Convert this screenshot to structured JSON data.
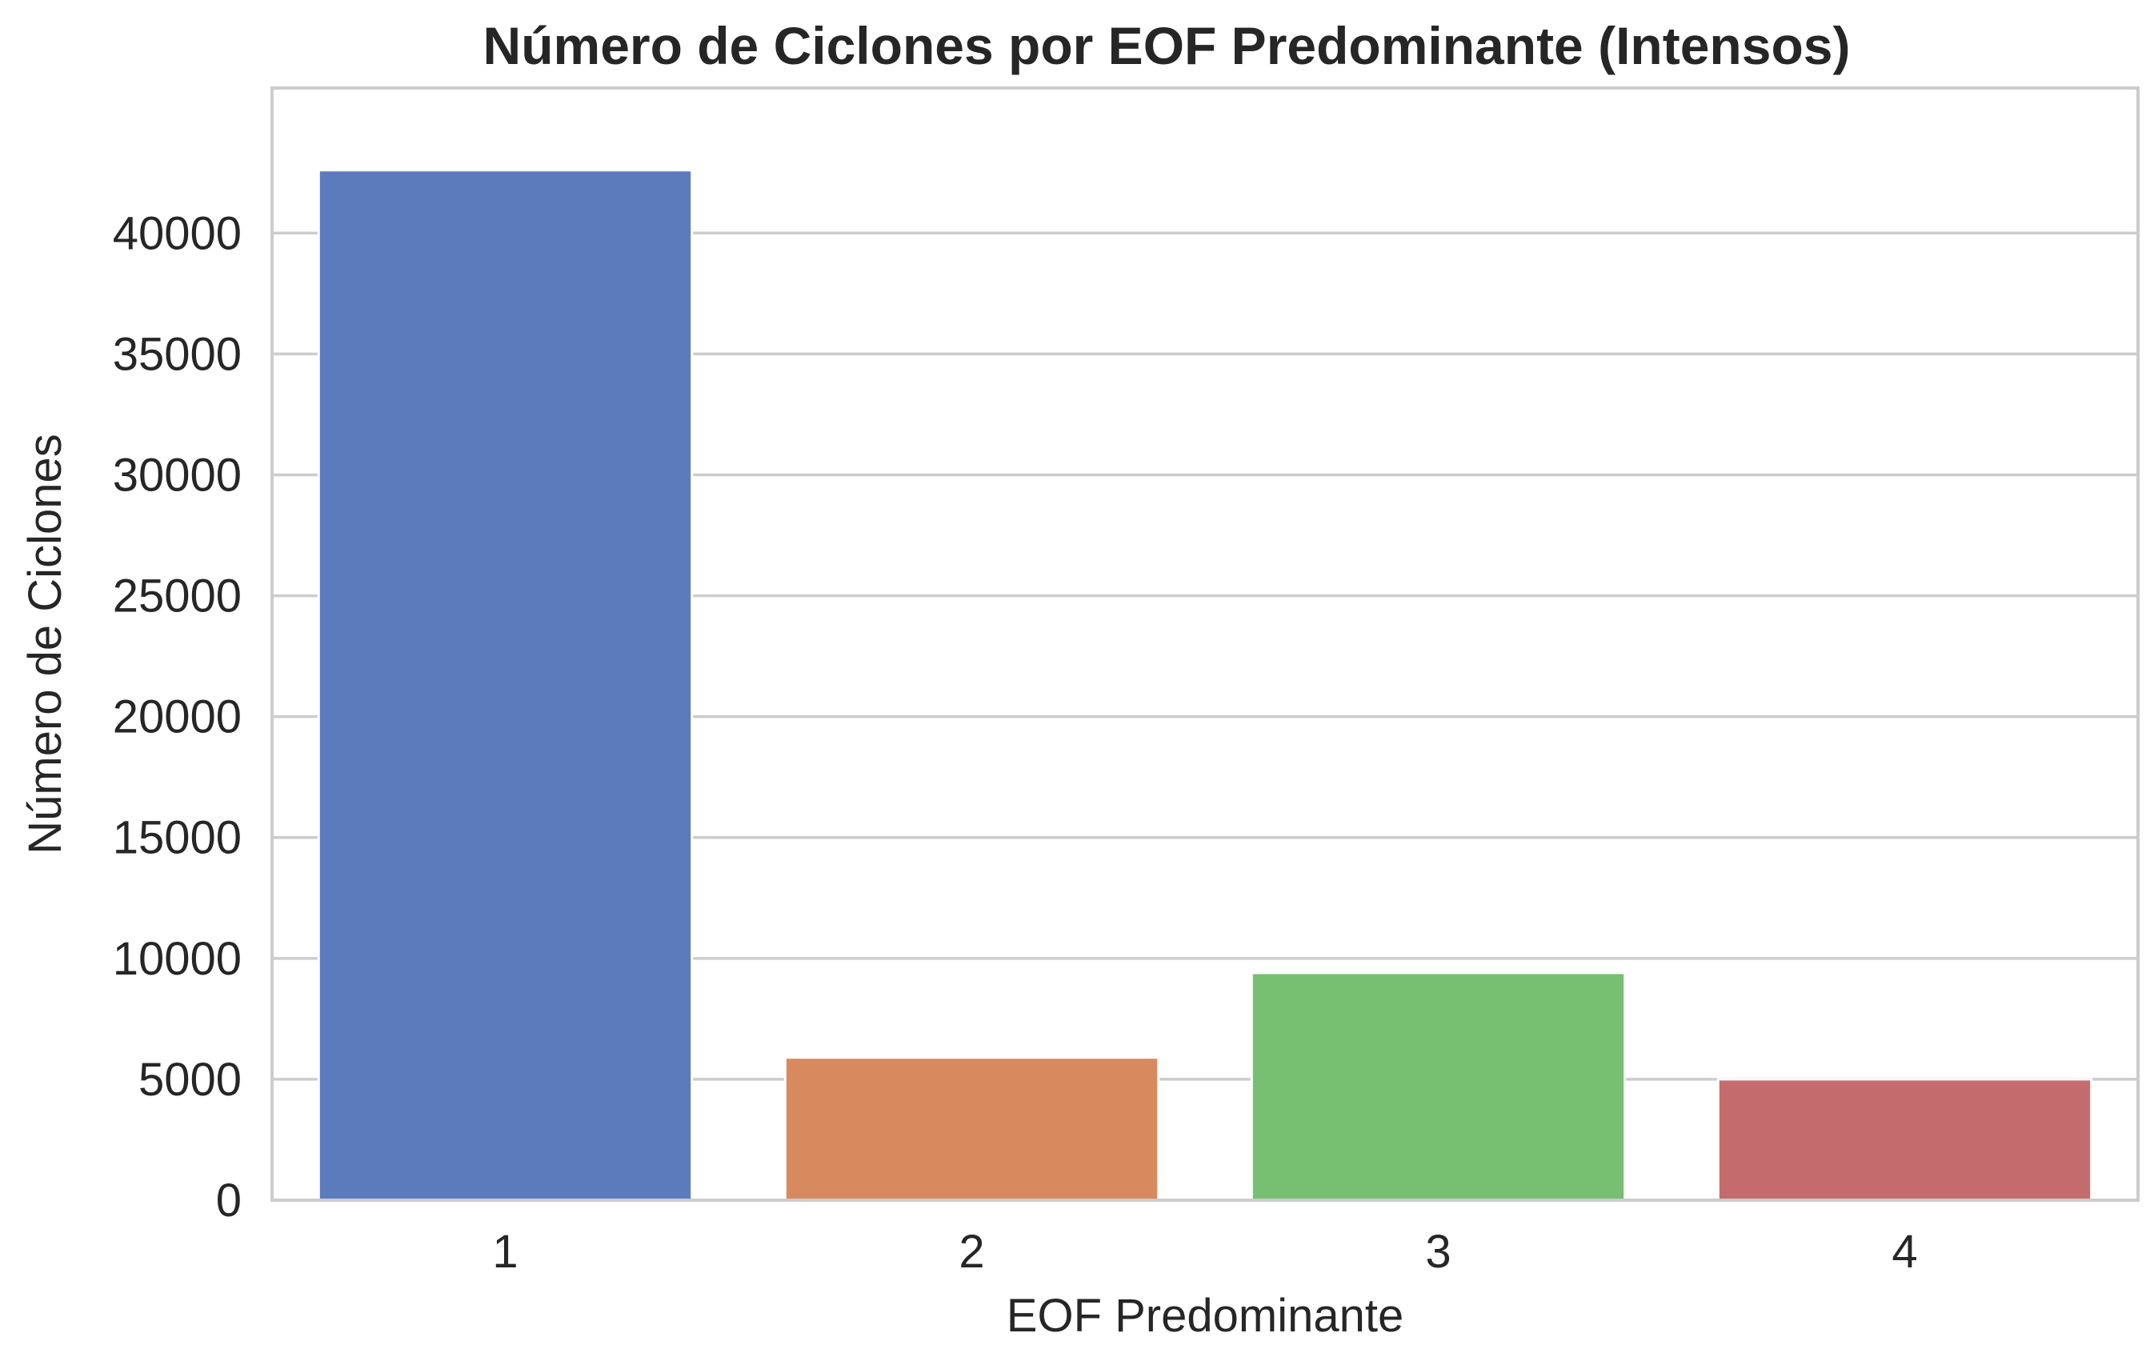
{
  "chart_data": {
    "type": "bar",
    "title": "Número de Ciclones por EOF Predominante (Intensos)",
    "xlabel": "EOF Predominante",
    "ylabel": "Número de Ciclones",
    "categories": [
      "1",
      "2",
      "3",
      "4"
    ],
    "values": [
      42600,
      5900,
      9400,
      5000
    ],
    "colors": [
      "#5b7bbd",
      "#d88a5f",
      "#77c072",
      "#c46c6d"
    ],
    "ylim": [
      0,
      46000
    ],
    "yticks": [
      0,
      5000,
      10000,
      15000,
      20000,
      25000,
      30000,
      35000,
      40000
    ],
    "grid": true,
    "legend": "none"
  }
}
